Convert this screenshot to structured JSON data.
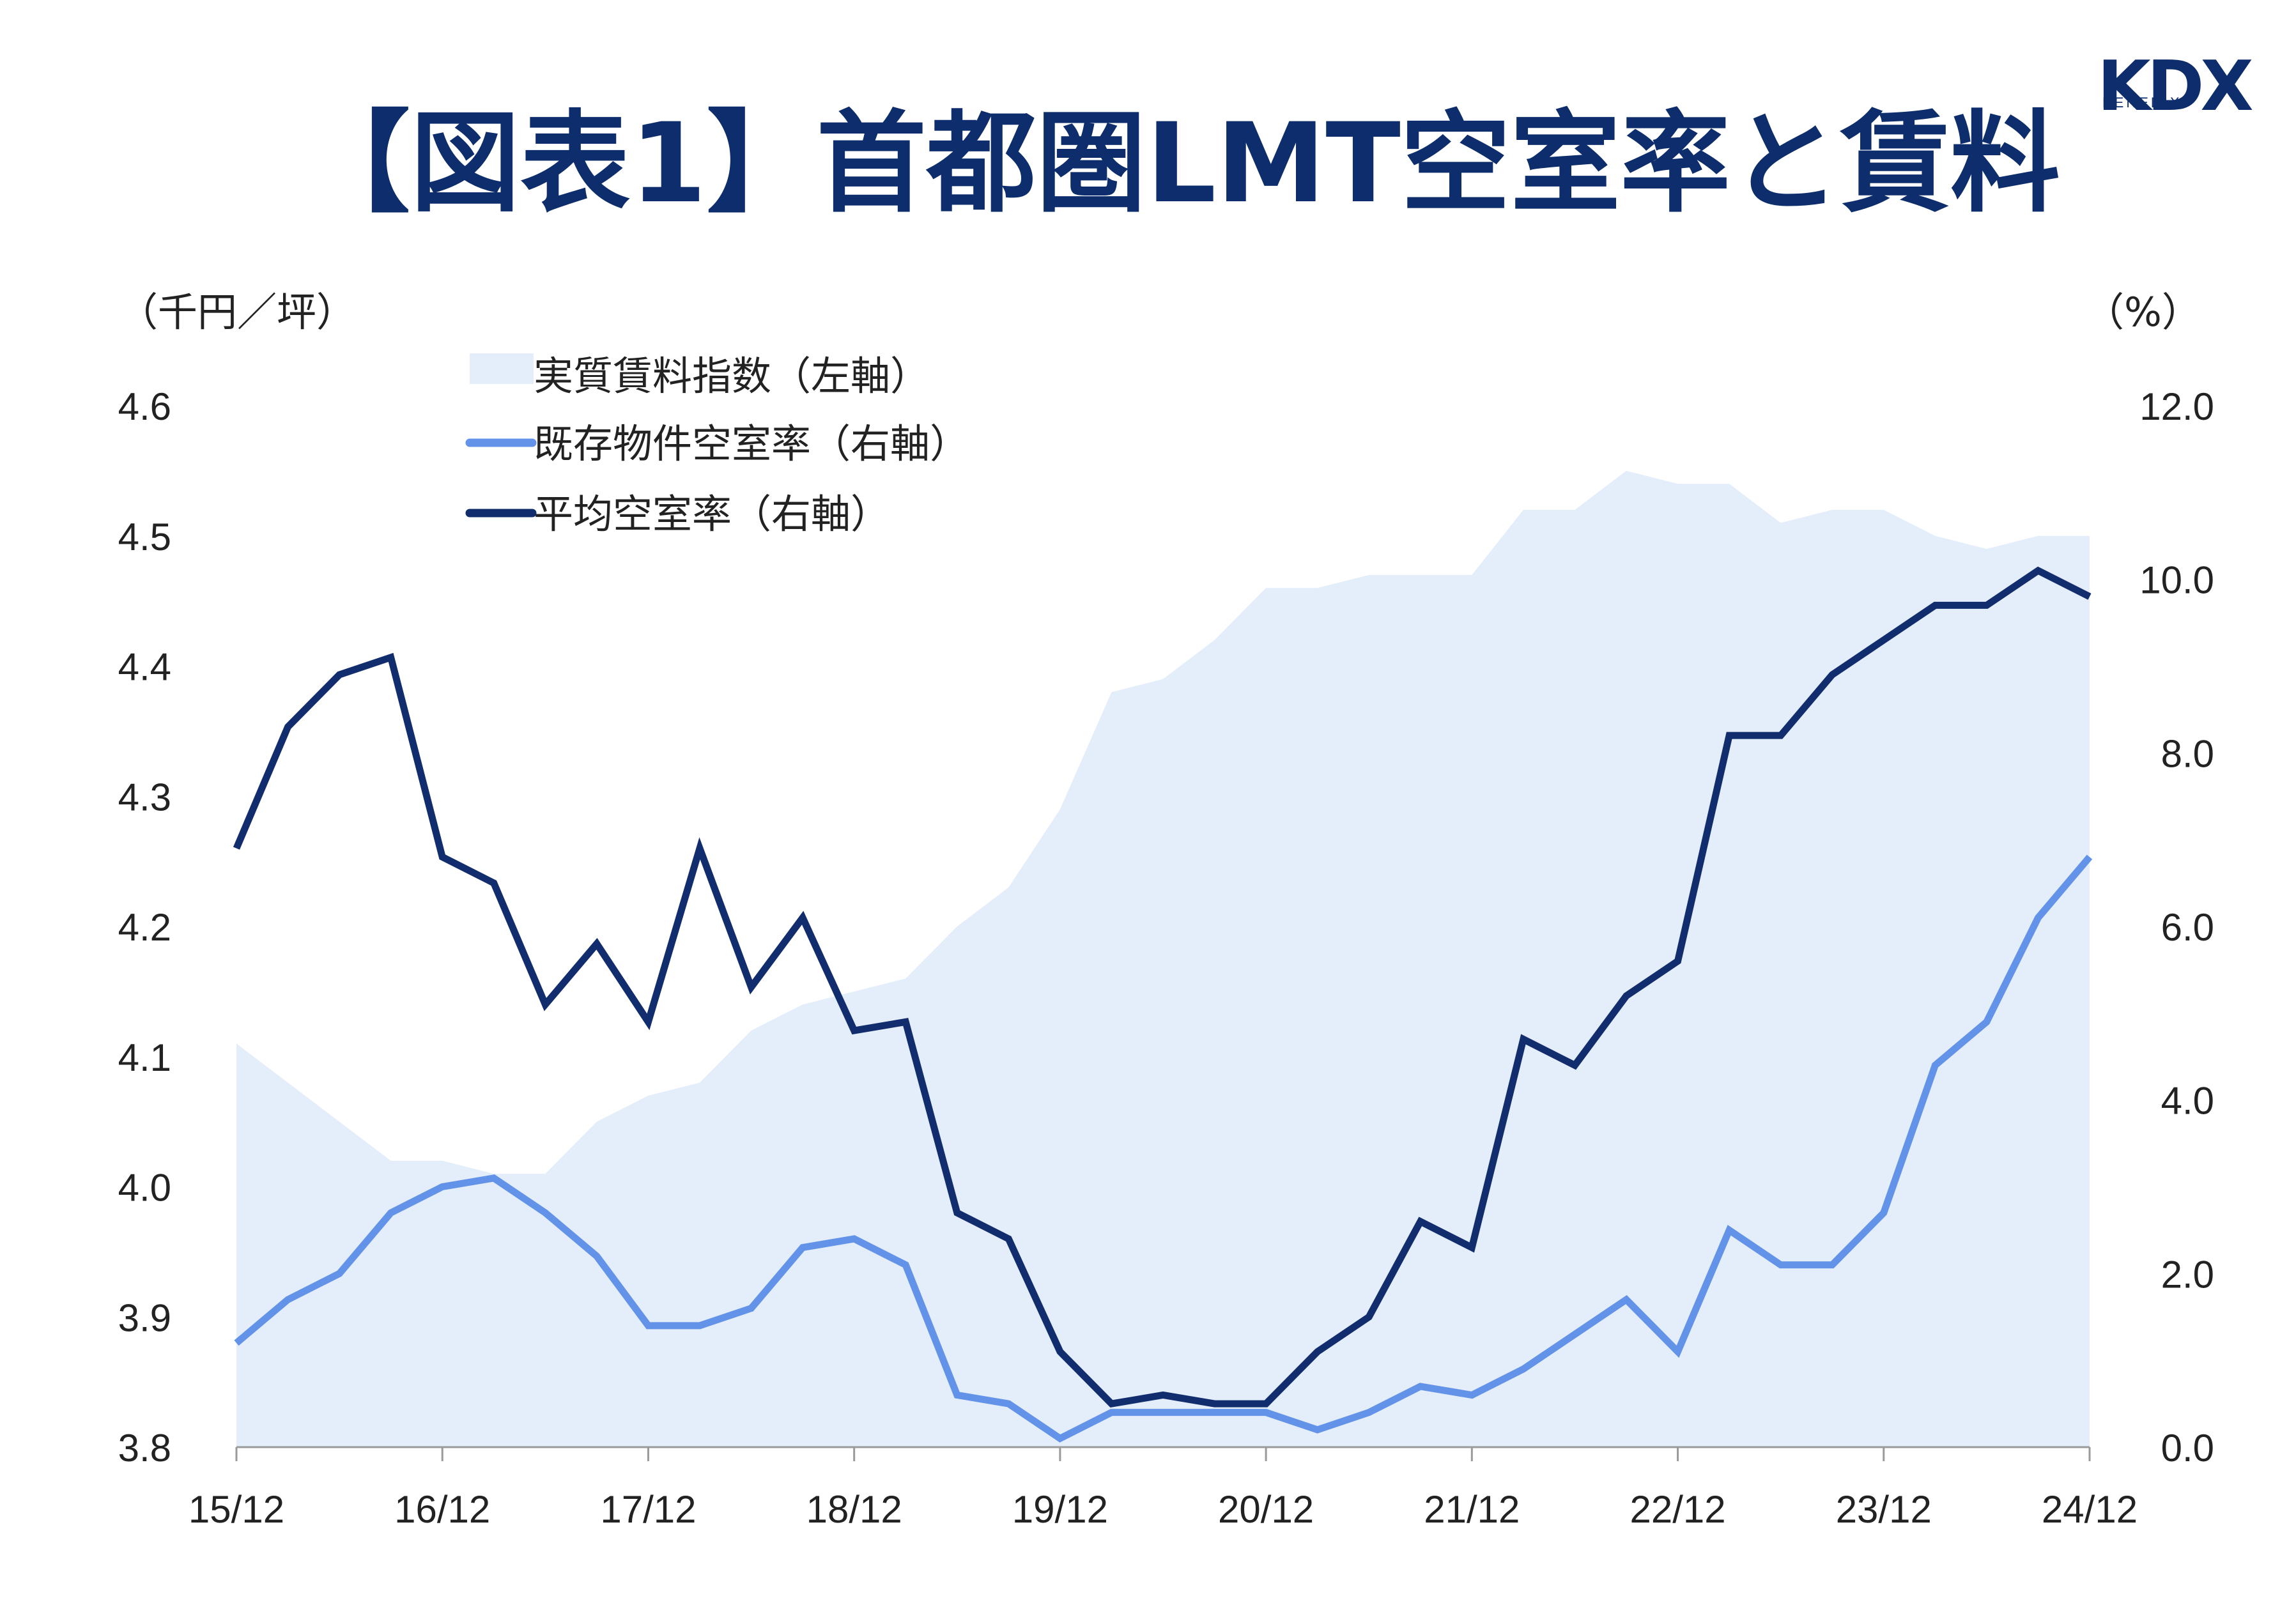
{
  "title": "【図表1】首都圏LMT空室率と賃料",
  "logo": {
    "text": "KDX",
    "subtext": "KENEDIX",
    "color": "#0d2d6c"
  },
  "chart_data": {
    "type": "area+line",
    "title": "【図表1】首都圏LMT空室率と賃料",
    "left_axis": {
      "unit": "（千円／坪）",
      "range": [
        3.8,
        4.6
      ],
      "ticks": [
        "3.8",
        "3.9",
        "4.0",
        "4.1",
        "4.2",
        "4.3",
        "4.4",
        "4.5",
        "4.6"
      ]
    },
    "right_axis": {
      "unit": "（%）",
      "range": [
        0,
        12
      ],
      "ticks": [
        "0.0",
        "2.0",
        "4.0",
        "6.0",
        "8.0",
        "10.0",
        "12.0"
      ]
    },
    "x_labels": [
      "15/12",
      "16/12",
      "17/12",
      "18/12",
      "19/12",
      "20/12",
      "21/12",
      "22/12",
      "23/12",
      "24/12"
    ],
    "x_label_positions": [
      0,
      4,
      8,
      12,
      16,
      20,
      24,
      28,
      32,
      36
    ],
    "legend": [
      {
        "label": "実質賃料指数（左軸）",
        "kind": "area",
        "color": "#e4edfa"
      },
      {
        "label": "既存物件空室率（右軸）",
        "kind": "line",
        "color": "#6393e8"
      },
      {
        "label": "平均空室率（右軸）",
        "kind": "line",
        "color": "#112d6e"
      }
    ],
    "series": [
      {
        "name": "実質賃料指数（左軸）",
        "axis": "left",
        "type": "area",
        "color": "#e4edfa",
        "values": [
          4.11,
          4.08,
          4.05,
          4.02,
          4.02,
          4.01,
          4.01,
          4.05,
          4.07,
          4.08,
          4.12,
          4.14,
          4.15,
          4.16,
          4.2,
          4.23,
          4.29,
          4.38,
          4.39,
          4.42,
          4.46,
          4.46,
          4.47,
          4.47,
          4.47,
          4.52,
          4.52,
          4.55,
          4.54,
          4.54,
          4.51,
          4.52,
          4.52,
          4.5,
          4.49,
          4.5,
          4.5
        ]
      },
      {
        "name": "既存物件空室率（右軸）",
        "axis": "right",
        "type": "line",
        "color": "#6393e8",
        "values": [
          1.2,
          1.7,
          2.0,
          2.7,
          3.0,
          3.1,
          2.7,
          2.2,
          1.4,
          1.4,
          1.6,
          2.3,
          2.4,
          2.1,
          0.6,
          0.5,
          0.1,
          0.4,
          0.4,
          0.4,
          0.4,
          0.2,
          0.4,
          0.7,
          0.6,
          0.9,
          1.3,
          1.7,
          1.1,
          2.5,
          2.1,
          2.1,
          2.7,
          4.4,
          4.9,
          6.1,
          6.8
        ]
      },
      {
        "name": "平均空室率（右軸）",
        "axis": "right",
        "type": "line",
        "color": "#112d6e",
        "values": [
          6.9,
          8.3,
          8.9,
          9.1,
          6.8,
          6.5,
          5.1,
          5.8,
          4.9,
          6.9,
          5.3,
          6.1,
          4.8,
          4.9,
          2.7,
          2.4,
          1.1,
          0.5,
          0.6,
          0.5,
          0.5,
          1.1,
          1.5,
          2.6,
          2.3,
          4.7,
          4.4,
          5.2,
          5.6,
          8.2,
          8.2,
          8.9,
          9.3,
          9.7,
          9.7,
          10.1,
          9.8
        ]
      }
    ]
  }
}
